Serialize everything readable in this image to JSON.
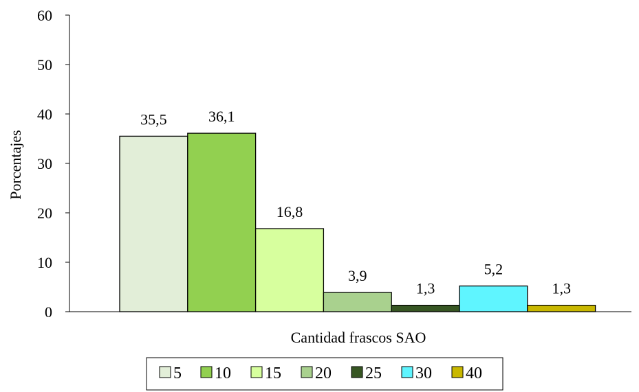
{
  "chart_data": {
    "type": "bar",
    "title": "",
    "xlabel": "Cantidad frascos SAO",
    "ylabel": "Porcentajes",
    "ylim": [
      0,
      60
    ],
    "yticks": [
      0,
      10,
      20,
      30,
      40,
      50,
      60
    ],
    "grid": false,
    "legend_position": "bottom",
    "categories": [
      ""
    ],
    "series": [
      {
        "name": "5",
        "values": [
          35.5
        ],
        "label": "35,5",
        "color": "#e2eed8"
      },
      {
        "name": "10",
        "values": [
          36.1
        ],
        "label": "36,1",
        "color": "#92d050"
      },
      {
        "name": "15",
        "values": [
          16.8
        ],
        "label": "16,8",
        "color": "#d7ff9e"
      },
      {
        "name": "20",
        "values": [
          3.9
        ],
        "label": "3,9",
        "color": "#a9d18e"
      },
      {
        "name": "25",
        "values": [
          1.3
        ],
        "label": "1,3",
        "color": "#375623"
      },
      {
        "name": "30",
        "values": [
          5.2
        ],
        "label": "5,2",
        "color": "#5ff5ff"
      },
      {
        "name": "40",
        "values": [
          1.3
        ],
        "label": "1,3",
        "color": "#c9b800"
      }
    ]
  }
}
